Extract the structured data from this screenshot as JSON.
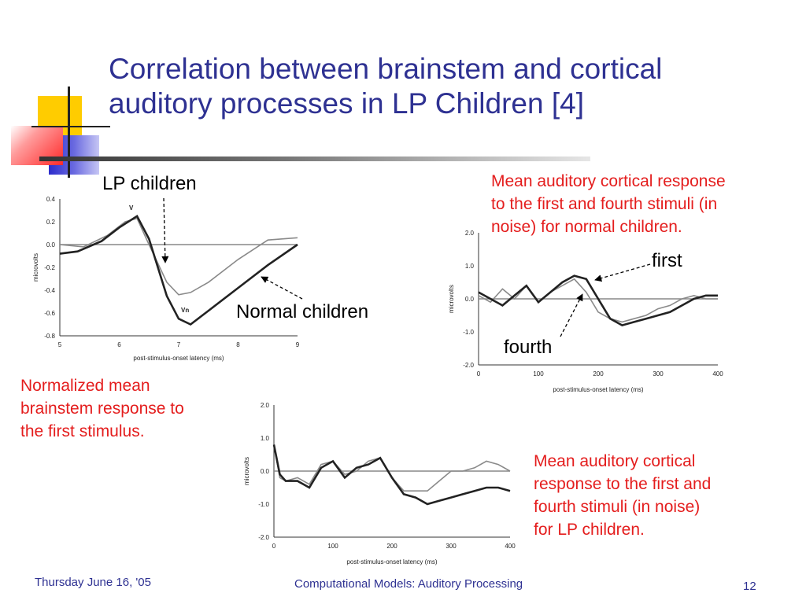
{
  "slide": {
    "title_line1": "Correlation between brainstem and cortical",
    "title_line2": "auditory processes in LP Children [4]",
    "labels": {
      "lp_children": "LP children",
      "normal_children": "Normal children",
      "first": "first",
      "fourth": "fourth"
    },
    "captions": {
      "brainstem": [
        "Normalized mean",
        "brainstem response to",
        "the first stimulus."
      ],
      "cortical_normal": [
        "Mean auditory cortical response",
        "to the first and fourth stimuli (in",
        "noise) for normal children."
      ],
      "cortical_lp": [
        "Mean auditory cortical",
        "response to the first and",
        "fourth stimuli (in noise)",
        "for LP children."
      ]
    },
    "footer": {
      "date": "Thursday June 16, '05",
      "center": "Computational Models: Auditory Processing",
      "page": "12"
    },
    "colors": {
      "title": "#2e3192",
      "caption": "#e41d1d",
      "deco_yellow": "#ffcc00",
      "deco_blue": "#3333cc",
      "deco_red": "#ff3333"
    }
  },
  "chart_data": [
    {
      "type": "line",
      "xlabel": "post-stimulus-onset latency (ms)",
      "ylabel": "microvolts",
      "xlim": [
        5,
        9
      ],
      "ylim": [
        -0.8,
        0.4
      ],
      "x_ticks": [
        "5",
        "6",
        "7",
        "8",
        "9"
      ],
      "y_ticks": [
        "0.4",
        "0.2",
        "0.0",
        "-0.2",
        "-0.4",
        "-0.6",
        "-0.8"
      ],
      "annotations": [
        "V",
        "Vn"
      ],
      "series": [
        {
          "x": [
            5.0,
            5.4,
            5.8,
            6.1,
            6.3,
            6.5,
            6.8,
            7.0,
            7.2,
            7.5,
            8.0,
            8.5,
            9.0
          ],
          "y": [
            0.0,
            -0.02,
            0.08,
            0.2,
            0.23,
            0.0,
            -0.33,
            -0.44,
            -0.42,
            -0.33,
            -0.13,
            0.04,
            0.06
          ]
        },
        {
          "x": [
            5.0,
            5.3,
            5.7,
            6.0,
            6.3,
            6.5,
            6.8,
            7.0,
            7.2,
            7.5,
            8.0,
            8.5,
            9.0
          ],
          "y": [
            -0.08,
            -0.06,
            0.03,
            0.15,
            0.25,
            0.05,
            -0.45,
            -0.65,
            -0.7,
            -0.58,
            -0.38,
            -0.18,
            0.0
          ]
        }
      ]
    },
    {
      "type": "line",
      "xlabel": "post-stimulus-onset latency (ms)",
      "ylabel": "microvolts",
      "xlim": [
        0,
        400
      ],
      "ylim": [
        -2.0,
        2.0
      ],
      "x_ticks": [
        "0",
        "100",
        "200",
        "300",
        "400"
      ],
      "y_ticks": [
        "2.0",
        "1.0",
        "0.0",
        "-1.0",
        "-2.0"
      ],
      "series": [
        {
          "x": [
            0,
            20,
            40,
            60,
            80,
            100,
            120,
            140,
            160,
            180,
            200,
            220,
            240,
            260,
            280,
            300,
            320,
            340,
            360,
            380,
            400
          ],
          "y": [
            0.1,
            -0.1,
            0.3,
            0.0,
            0.4,
            -0.1,
            0.2,
            0.4,
            0.6,
            0.2,
            -0.4,
            -0.6,
            -0.7,
            -0.6,
            -0.5,
            -0.3,
            -0.2,
            0.0,
            0.1,
            0.0,
            0.0
          ]
        },
        {
          "x": [
            0,
            20,
            40,
            60,
            80,
            100,
            120,
            140,
            160,
            180,
            200,
            220,
            240,
            260,
            280,
            300,
            320,
            340,
            360,
            380,
            400
          ],
          "y": [
            0.2,
            0.0,
            -0.2,
            0.1,
            0.4,
            -0.1,
            0.2,
            0.5,
            0.7,
            0.6,
            0.0,
            -0.6,
            -0.8,
            -0.7,
            -0.6,
            -0.5,
            -0.4,
            -0.2,
            0.0,
            0.1,
            0.1
          ]
        }
      ]
    },
    {
      "type": "line",
      "xlabel": "post-stimulus-onset latency (ms)",
      "ylabel": "microvolts",
      "xlim": [
        0,
        400
      ],
      "ylim": [
        -2.0,
        2.0
      ],
      "x_ticks": [
        "0",
        "100",
        "200",
        "300",
        "400"
      ],
      "y_ticks": [
        "2.0",
        "1.0",
        "0.0",
        "-1.0",
        "-2.0"
      ],
      "series": [
        {
          "x": [
            0,
            10,
            20,
            40,
            60,
            80,
            100,
            120,
            140,
            160,
            180,
            200,
            220,
            240,
            260,
            280,
            300,
            320,
            340,
            360,
            380,
            400
          ],
          "y": [
            0.8,
            -0.2,
            -0.3,
            -0.2,
            -0.4,
            0.2,
            0.3,
            -0.1,
            0.0,
            0.3,
            0.4,
            -0.2,
            -0.6,
            -0.6,
            -0.6,
            -0.3,
            0.0,
            0.0,
            0.1,
            0.3,
            0.2,
            0.0
          ]
        },
        {
          "x": [
            0,
            10,
            20,
            40,
            60,
            80,
            100,
            120,
            140,
            160,
            180,
            200,
            220,
            240,
            260,
            280,
            300,
            320,
            340,
            360,
            380,
            400
          ],
          "y": [
            0.8,
            -0.1,
            -0.3,
            -0.3,
            -0.5,
            0.1,
            0.3,
            -0.2,
            0.1,
            0.2,
            0.4,
            -0.2,
            -0.7,
            -0.8,
            -1.0,
            -0.9,
            -0.8,
            -0.7,
            -0.6,
            -0.5,
            -0.5,
            -0.6
          ]
        }
      ]
    }
  ]
}
